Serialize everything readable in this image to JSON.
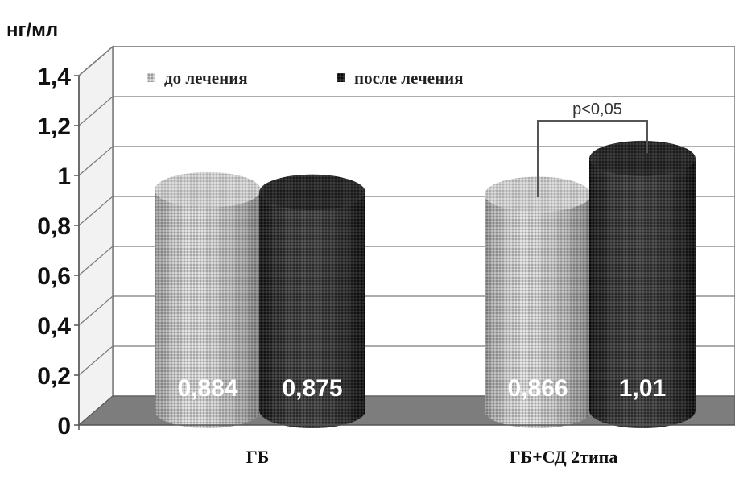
{
  "chart_data": {
    "type": "bar",
    "unit": "нг/мл",
    "categories": [
      "ГБ",
      "ГБ+СД 2типа"
    ],
    "series": [
      {
        "name": "до лечения",
        "values": [
          0.884,
          0.866
        ],
        "labels": [
          "0,884",
          "0,866"
        ],
        "color": "#b8b8b8"
      },
      {
        "name": "после лечения",
        "values": [
          0.875,
          1.01
        ],
        "labels": [
          "0,875",
          "1,01"
        ],
        "color": "#1a1a1a"
      }
    ],
    "ylim": [
      0,
      1.4
    ],
    "yticks": [
      0,
      0.2,
      0.4,
      0.6,
      0.8,
      1,
      1.2,
      1.4
    ],
    "ytick_labels": [
      "0",
      "0,2",
      "0,4",
      "0,6",
      "0,8",
      "1",
      "1,2",
      "1,4"
    ],
    "grid": true,
    "legend_position": "top-left",
    "annotation": "p<0,05"
  }
}
